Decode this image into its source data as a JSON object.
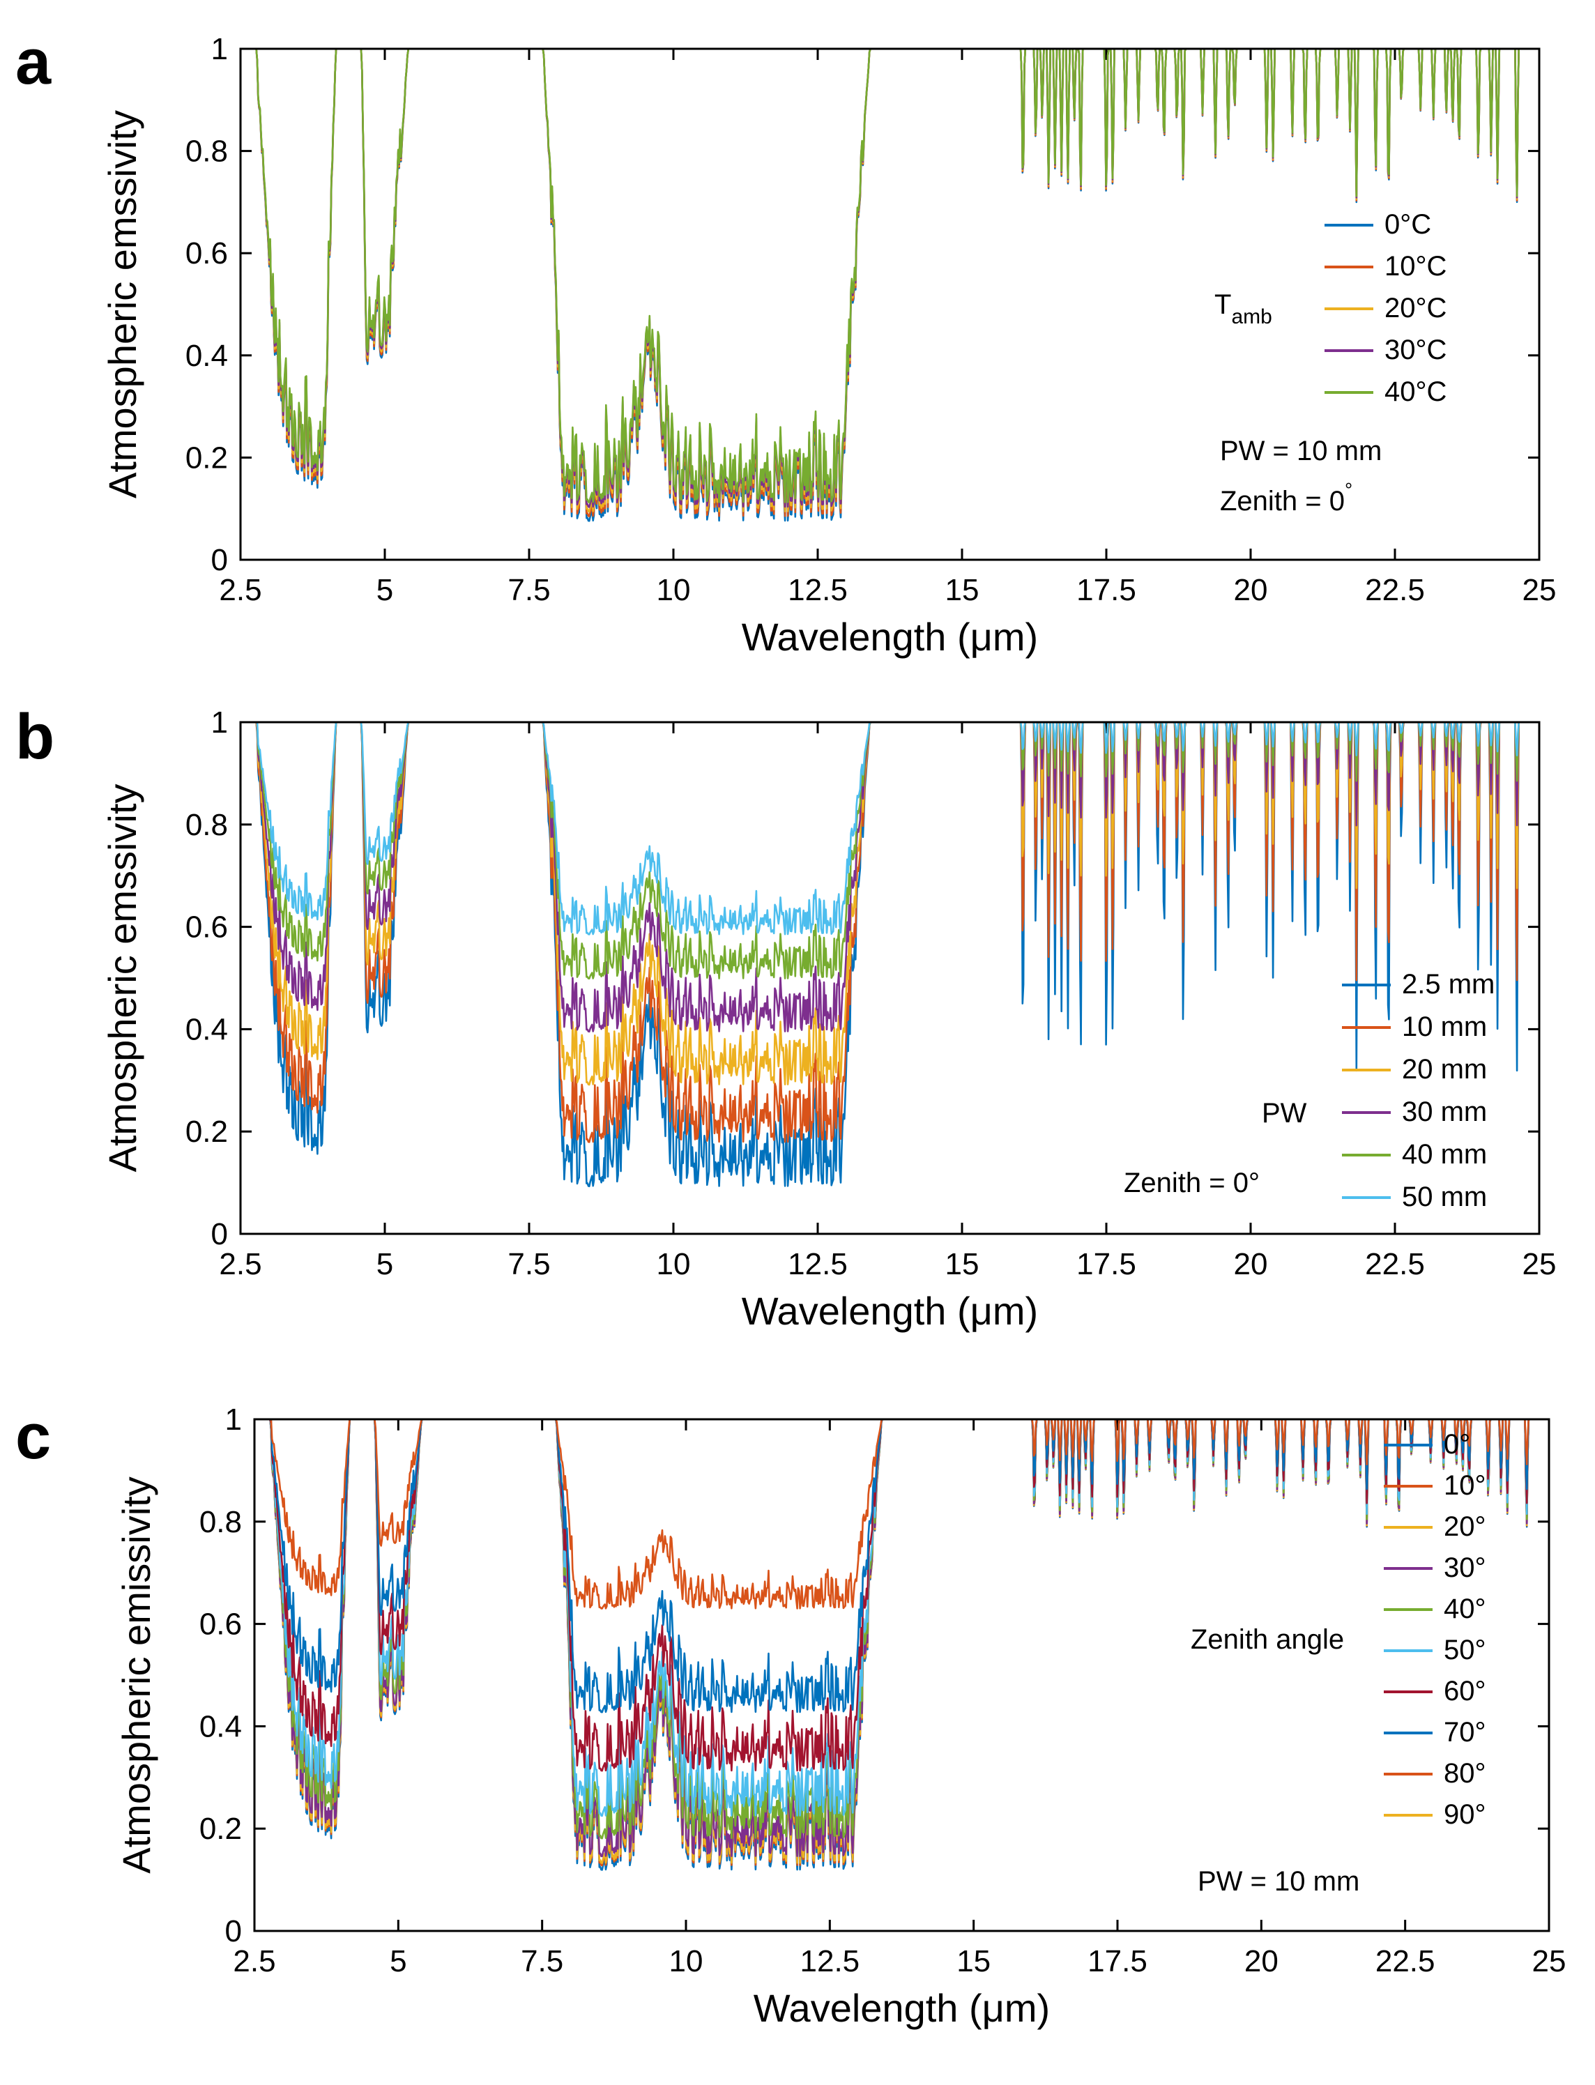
{
  "chart_data": [
    {
      "type": "line",
      "panel_label": "a",
      "xlabel": "Wavelength (μm)",
      "ylabel": "Atmospheric emssivity",
      "xlim": [
        2.5,
        25
      ],
      "ylim": [
        0,
        1
      ],
      "x_ticks": [
        2.5,
        5,
        7.5,
        10,
        12.5,
        15,
        17.5,
        20,
        22.5,
        25
      ],
      "x_tick_labels": [
        "2.5",
        "5",
        "7.5",
        "10",
        "12.5",
        "15",
        "17.5",
        "20",
        "22.5",
        "25"
      ],
      "y_ticks": [
        0,
        0.2,
        0.4,
        0.6,
        0.8,
        1
      ],
      "y_tick_labels": [
        "0",
        "0.2",
        "0.4",
        "0.6",
        "0.8",
        "1"
      ],
      "grid": false,
      "legend_title": {
        "main": "T",
        "sub": "amb"
      },
      "legend_position": "right",
      "annotations": [
        "PW = 10 mm",
        "Zenith = 0"
      ],
      "annotation_degree_mark": "°",
      "series": [
        {
          "name": "0°C",
          "color": "#0072BD",
          "depth": 1.02
        },
        {
          "name": "10°C",
          "color": "#D95319",
          "depth": 1.01
        },
        {
          "name": "20°C",
          "color": "#EDB120",
          "depth": 1.0
        },
        {
          "name": "30°C",
          "color": "#7E2F8E",
          "depth": 0.99
        },
        {
          "name": "40°C",
          "color": "#77AC30",
          "depth": 0.98
        }
      ]
    },
    {
      "type": "line",
      "panel_label": "b",
      "xlabel": "Wavelength (μm)",
      "ylabel": "Atmospheric emssivity",
      "xlim": [
        2.5,
        25
      ],
      "ylim": [
        0,
        1
      ],
      "x_ticks": [
        2.5,
        5,
        7.5,
        10,
        12.5,
        15,
        17.5,
        20,
        22.5,
        25
      ],
      "x_tick_labels": [
        "2.5",
        "5",
        "7.5",
        "10",
        "12.5",
        "15",
        "17.5",
        "20",
        "22.5",
        "25"
      ],
      "y_ticks": [
        0,
        0.2,
        0.4,
        0.6,
        0.8,
        1
      ],
      "y_tick_labels": [
        "0",
        "0.2",
        "0.4",
        "0.6",
        "0.8",
        "1"
      ],
      "grid": false,
      "legend_title": {
        "main": "PW",
        "sub": ""
      },
      "legend_position": "right",
      "annotations": [
        "Zenith = 0°"
      ],
      "annotation_degree_mark": "",
      "series": [
        {
          "name": "2.5 mm",
          "color": "#0072BD",
          "depth": 1.05
        },
        {
          "name": "10 mm",
          "color": "#D95319",
          "depth": 0.95
        },
        {
          "name": "20 mm",
          "color": "#EDB120",
          "depth": 0.82
        },
        {
          "name": "30 mm",
          "color": "#7E2F8E",
          "depth": 0.7
        },
        {
          "name": "40 mm",
          "color": "#77AC30",
          "depth": 0.58
        },
        {
          "name": "50 mm",
          "color": "#4DBEEE",
          "depth": 0.48
        }
      ]
    },
    {
      "type": "line",
      "panel_label": "c",
      "xlabel": "Wavelength (μm)",
      "ylabel": "Atmospheric emissivity",
      "xlim": [
        2.5,
        25
      ],
      "ylim": [
        0,
        1
      ],
      "x_ticks": [
        2.5,
        5,
        7.5,
        10,
        12.5,
        15,
        17.5,
        20,
        22.5,
        25
      ],
      "x_tick_labels": [
        "2.5",
        "5",
        "7.5",
        "10",
        "12.5",
        "15",
        "17.5",
        "20",
        "22.5",
        "25"
      ],
      "y_ticks": [
        0,
        0.2,
        0.4,
        0.6,
        0.8,
        1
      ],
      "y_tick_labels": [
        "0",
        "0.2",
        "0.4",
        "0.6",
        "0.8",
        "1"
      ],
      "grid": false,
      "legend_title": {
        "main": "Zenith angle",
        "sub": ""
      },
      "legend_position": "right",
      "annotations": [
        "PW = 10 mm"
      ],
      "annotation_degree_mark": "",
      "series": [
        {
          "name": "0°",
          "color": "#0072BD",
          "depth": 1.0
        },
        {
          "name": "10°",
          "color": "#D95319",
          "depth": 0.99
        },
        {
          "name": "20°",
          "color": "#EDB120",
          "depth": 0.985
        },
        {
          "name": "30°",
          "color": "#7E2F8E",
          "depth": 0.97
        },
        {
          "name": "40°",
          "color": "#77AC30",
          "depth": 0.93
        },
        {
          "name": "50°",
          "color": "#4DBEEE",
          "depth": 0.88
        },
        {
          "name": "60°",
          "color": "#A2142F",
          "depth": 0.78
        },
        {
          "name": "70°",
          "color": "#0072BD",
          "depth": 0.65
        },
        {
          "name": "80°",
          "color": "#D95319",
          "depth": 0.42
        },
        {
          "name": "90°",
          "color": "#EDB120",
          "depth": 0.0
        }
      ]
    }
  ]
}
